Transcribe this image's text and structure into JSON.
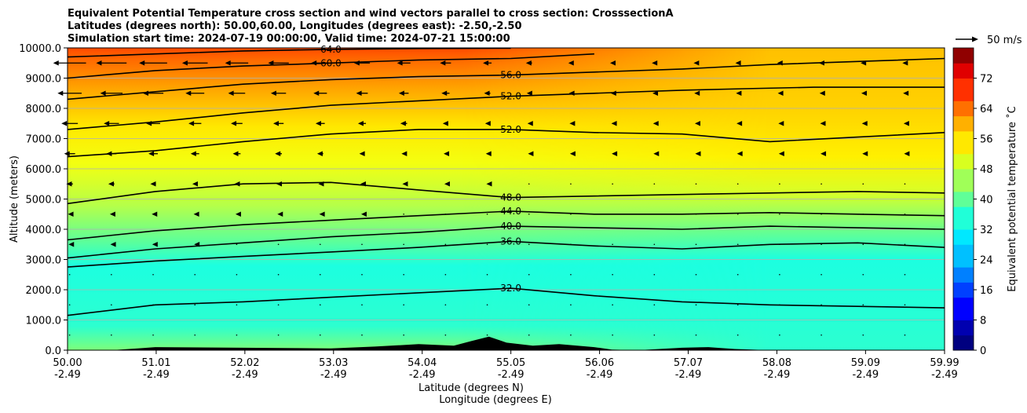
{
  "chart_data": {
    "type": "contour",
    "title_lines": [
      "Equivalent Potential Temperature cross section and wind vectors parallel to cross section: CrosssectionA",
      "Latitudes (degrees north): 50.00,60.00, Longitudes (degrees east): -2.50,-2.50",
      "Simulation start time: 2024-07-19 00:00:00, Valid time: 2024-07-21 15:00:00"
    ],
    "xlabel_lines": [
      "Latitude (degrees N)",
      "Longitude (degrees E)"
    ],
    "ylabel": "Altitude (meters)",
    "x_range": [
      50.0,
      59.99
    ],
    "y_range": [
      0,
      10000
    ],
    "x_ticks": [
      {
        "value": 50.0,
        "lat": "50.00",
        "lon": "-2.49"
      },
      {
        "value": 51.01,
        "lat": "51.01",
        "lon": "-2.49"
      },
      {
        "value": 52.02,
        "lat": "52.02",
        "lon": "-2.49"
      },
      {
        "value": 53.03,
        "lat": "53.03",
        "lon": "-2.49"
      },
      {
        "value": 54.04,
        "lat": "54.04",
        "lon": "-2.49"
      },
      {
        "value": 55.05,
        "lat": "55.05",
        "lon": "-2.49"
      },
      {
        "value": 56.06,
        "lat": "56.06",
        "lon": "-2.49"
      },
      {
        "value": 57.07,
        "lat": "57.07",
        "lon": "-2.49"
      },
      {
        "value": 58.08,
        "lat": "58.08",
        "lon": "-2.49"
      },
      {
        "value": 59.09,
        "lat": "59.09",
        "lon": "-2.49"
      },
      {
        "value": 59.99,
        "lat": "59.99",
        "lon": "-2.49"
      }
    ],
    "y_ticks": [
      {
        "value": 0,
        "label": "0.0"
      },
      {
        "value": 1000,
        "label": "1000.0"
      },
      {
        "value": 2000,
        "label": "2000.0"
      },
      {
        "value": 3000,
        "label": "3000.0"
      },
      {
        "value": 4000,
        "label": "4000.0"
      },
      {
        "value": 5000,
        "label": "5000.0"
      },
      {
        "value": 6000,
        "label": "6000.0"
      },
      {
        "value": 7000,
        "label": "7000.0"
      },
      {
        "value": 8000,
        "label": "8000.0"
      },
      {
        "value": 9000,
        "label": "9000.0"
      },
      {
        "value": 10000,
        "label": "10000.0"
      }
    ],
    "grid": "horizontal",
    "colorbar": {
      "label": "Equivalent potential temperature ˚C",
      "range": [
        0,
        80
      ],
      "ticks": [
        "0",
        "8",
        "16",
        "24",
        "32",
        "40",
        "48",
        "56",
        "64",
        "72"
      ],
      "colormap": "jet"
    },
    "quiver_key": {
      "label": "50 m/s",
      "value": 50
    },
    "contour_lines": [
      {
        "label": "36.0",
        "x": [
          50.0,
          51.0,
          52.0,
          53.0,
          54.0,
          55.05,
          56.0,
          57.0,
          58.0,
          59.0,
          59.99
        ],
        "y": [
          2750,
          2950,
          3100,
          3250,
          3400,
          3600,
          3450,
          3350,
          3500,
          3550,
          3400
        ]
      },
      {
        "label": "40.0",
        "x": [
          50.0,
          51.0,
          52.0,
          53.0,
          54.0,
          55.05,
          56.0,
          57.0,
          58.0,
          59.0,
          59.99
        ],
        "y": [
          3050,
          3350,
          3550,
          3750,
          3900,
          4100,
          4050,
          4000,
          4100,
          4050,
          4000
        ]
      },
      {
        "label": "44.0",
        "x": [
          50.0,
          51.0,
          52.0,
          53.0,
          54.0,
          55.05,
          56.0,
          57.0,
          58.0,
          59.0,
          59.99
        ],
        "y": [
          3650,
          3950,
          4150,
          4300,
          4450,
          4600,
          4500,
          4500,
          4550,
          4500,
          4450
        ]
      },
      {
        "label": "48.0",
        "x": [
          50.0,
          51.0,
          52.0,
          53.0,
          54.0,
          55.05,
          56.0,
          57.0,
          58.0,
          59.0,
          59.99
        ],
        "y": [
          4850,
          5250,
          5500,
          5550,
          5300,
          5050,
          5100,
          5150,
          5200,
          5250,
          5200
        ]
      },
      {
        "label": "52.0",
        "x": [
          50.0,
          51.0,
          52.0,
          53.0,
          54.0,
          55.05,
          56.0,
          57.0,
          58.0,
          59.0,
          59.99
        ],
        "y": [
          6400,
          6600,
          6900,
          7150,
          7300,
          7300,
          7200,
          7150,
          6900,
          7050,
          7200
        ]
      },
      {
        "label": "52.0",
        "x": [
          50.0,
          51.0,
          52.0,
          53.0,
          54.0,
          55.05,
          56.0,
          57.0,
          57.7,
          58.5,
          59.99
        ],
        "y": [
          7300,
          7550,
          7850,
          8100,
          8250,
          8400,
          8500,
          8600,
          8650,
          8700,
          8700
        ]
      },
      {
        "label": "56.0",
        "x": [
          50.0,
          51.0,
          52.0,
          53.0,
          54.0,
          55.05,
          56.0,
          57.0,
          58.0,
          59.0,
          59.99
        ],
        "y": [
          8300,
          8550,
          8800,
          8950,
          9050,
          9100,
          9200,
          9300,
          9450,
          9550,
          9650
        ]
      },
      {
        "label": "60.0",
        "x": [
          50.0,
          51.0,
          52.0,
          53.0,
          54.0,
          55.05,
          56.0
        ],
        "y": [
          9000,
          9250,
          9400,
          9500,
          9600,
          9650,
          9800
        ]
      },
      {
        "label": "64.0",
        "x": [
          50.0,
          51.0,
          52.0,
          53.0,
          54.0,
          55.05
        ],
        "y": [
          9700,
          9800,
          9900,
          9950,
          9980,
          9990
        ]
      },
      {
        "label": "32.0",
        "x": [
          50.0,
          51.0,
          52.0,
          53.0,
          54.0,
          55.05,
          56.0,
          57.0,
          58.0,
          59.0,
          59.99
        ],
        "y": [
          1150,
          1500,
          1600,
          1750,
          1900,
          2050,
          1800,
          1600,
          1500,
          1450,
          1400
        ]
      }
    ],
    "contour_label_values": [
      "64.0",
      "60.0",
      "56.0",
      "52.0",
      "48.0",
      "44.0",
      "40.0",
      "36.0",
      "32.0"
    ],
    "terrain": {
      "x": [
        50.0,
        50.5,
        50.8,
        51.0,
        52.0,
        53.0,
        53.5,
        54.0,
        54.4,
        54.6,
        54.8,
        55.0,
        55.3,
        55.6,
        56.0,
        56.2,
        56.5,
        57.0,
        57.3,
        57.6,
        58.0,
        59.99
      ],
      "y": [
        0,
        0,
        60,
        100,
        80,
        60,
        120,
        200,
        150,
        300,
        450,
        250,
        150,
        200,
        100,
        20,
        0,
        80,
        100,
        40,
        0,
        0
      ]
    },
    "wind_u": [
      {
        "y": 9500,
        "u": -30
      },
      {
        "y": 8500,
        "u": -22
      },
      {
        "y": 7500,
        "u": -15
      },
      {
        "y": 6500,
        "u": -10
      },
      {
        "y": 5500,
        "u": -6
      },
      {
        "y": 4500,
        "u": -3
      },
      {
        "y": 3500,
        "u": -2
      },
      {
        "y": 2500,
        "u": -1
      },
      {
        "y": 1500,
        "u": -1
      },
      {
        "y": 500,
        "u": -1
      }
    ]
  }
}
